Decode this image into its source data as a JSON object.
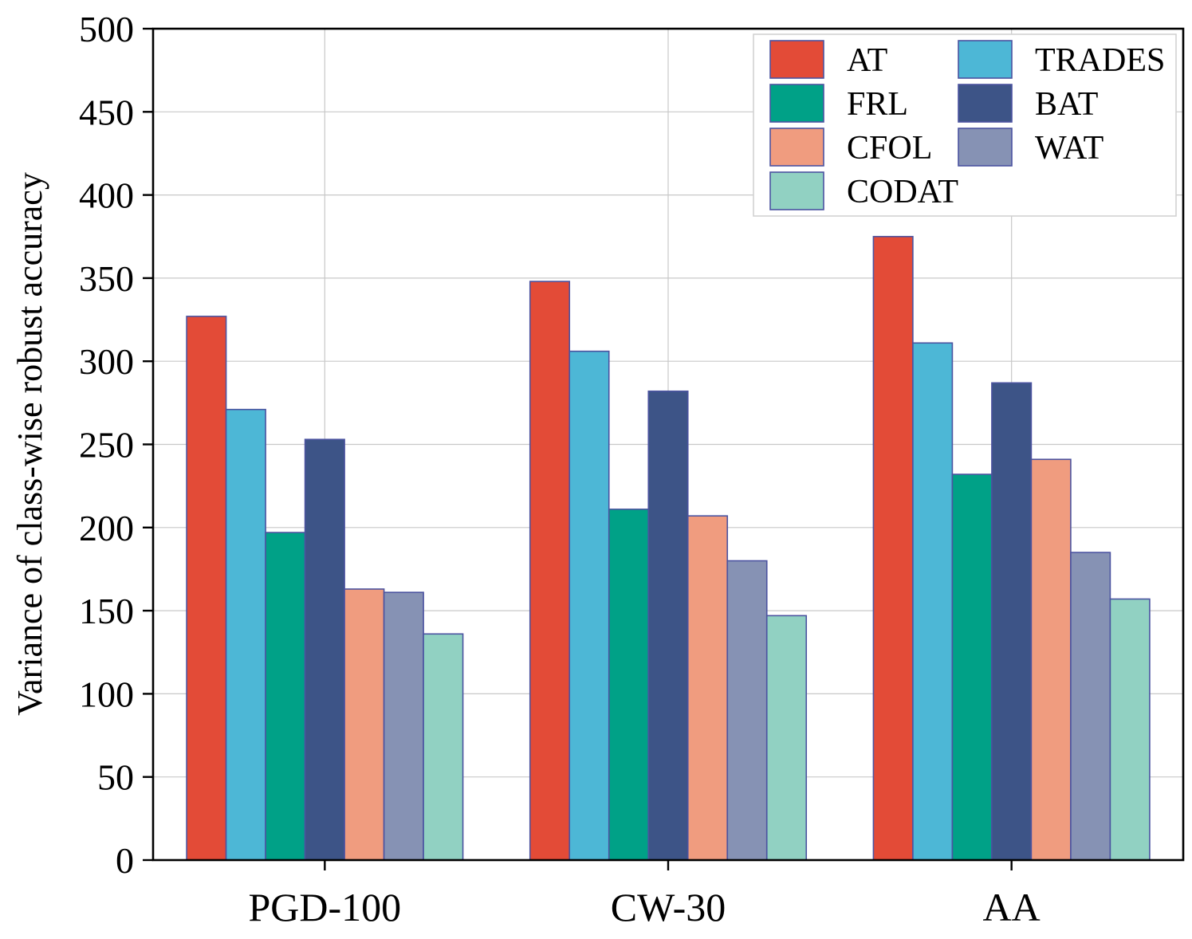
{
  "chart_data": {
    "type": "bar",
    "title": "",
    "xlabel": "",
    "ylabel": "Variance of class-wise robust accuracy",
    "ylim": [
      0,
      500
    ],
    "yticks": [
      0,
      50,
      100,
      150,
      200,
      250,
      300,
      350,
      400,
      450,
      500
    ],
    "categories": [
      "PGD-100",
      "CW-30",
      "AA"
    ],
    "grid": true,
    "legend_position": "top-right",
    "legend_columns": 2,
    "bar_edge_color": "#4b53a0",
    "series": [
      {
        "name": "AT",
        "color": "#e34b37",
        "values": [
          327,
          348,
          375
        ]
      },
      {
        "name": "TRADES",
        "color": "#4db7d6",
        "values": [
          271,
          306,
          311
        ]
      },
      {
        "name": "FRL",
        "color": "#00a187",
        "values": [
          197,
          211,
          232
        ]
      },
      {
        "name": "BAT",
        "color": "#3d5487",
        "values": [
          253,
          282,
          287
        ]
      },
      {
        "name": "CFOL",
        "color": "#f09c7f",
        "values": [
          163,
          207,
          241
        ]
      },
      {
        "name": "WAT",
        "color": "#8692b4",
        "values": [
          161,
          180,
          185
        ]
      },
      {
        "name": "CODAT",
        "color": "#91d1c2",
        "values": [
          136,
          147,
          157
        ]
      }
    ],
    "legend_order": [
      "AT",
      "TRADES",
      "FRL",
      "BAT",
      "CFOL",
      "WAT",
      "CODAT"
    ]
  }
}
